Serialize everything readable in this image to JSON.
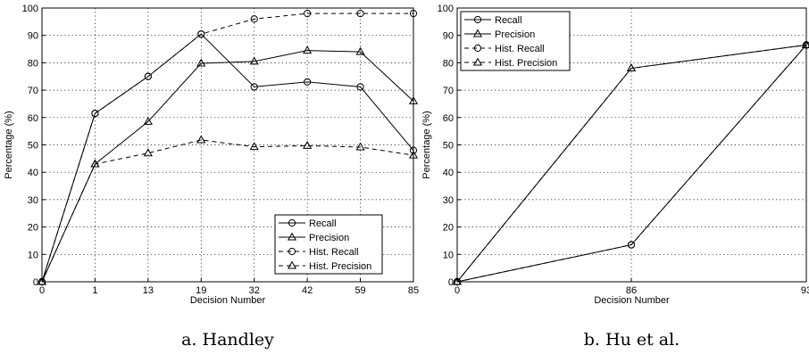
{
  "chart_data": [
    {
      "type": "line",
      "xlabel": "Decision Number",
      "ylabel": "Percentage (%)",
      "caption": "a. Handley",
      "x": [
        "0",
        "1",
        "13",
        "19",
        "32",
        "42",
        "59",
        "85"
      ],
      "ylim": [
        0,
        100
      ],
      "yticks": [
        "0",
        "10",
        "20",
        "30",
        "40",
        "50",
        "60",
        "70",
        "80",
        "90",
        "100"
      ],
      "grid": true,
      "legend_position": "bottom-right",
      "series": [
        {
          "name": "Recall",
          "marker": "circle",
          "dash": "solid",
          "values": [
            0,
            61.5,
            75,
            90.5,
            71.2,
            73,
            71.2,
            48
          ]
        },
        {
          "name": "Precision",
          "marker": "triangle",
          "dash": "solid",
          "values": [
            0,
            43,
            58.5,
            79.8,
            80.5,
            84.5,
            84,
            66
          ]
        },
        {
          "name": "Hist. Recall",
          "marker": "circle",
          "dash": "dashed",
          "values": [
            0,
            61.5,
            75,
            90.5,
            96,
            98,
            98,
            98
          ]
        },
        {
          "name": "Hist. Precision",
          "marker": "triangle",
          "dash": "dashed",
          "values": [
            0,
            43,
            47,
            51.8,
            49.3,
            49.7,
            49.2,
            46.2
          ]
        }
      ]
    },
    {
      "type": "line",
      "xlabel": "Decision Number",
      "ylabel": "Percentage (%)",
      "caption": "b. Hu et al.",
      "x": [
        "0",
        "86",
        "93"
      ],
      "ylim": [
        0,
        100
      ],
      "yticks": [
        "0",
        "10",
        "20",
        "30",
        "40",
        "50",
        "60",
        "70",
        "80",
        "90",
        "100"
      ],
      "grid": true,
      "legend_position": "top-left",
      "series": [
        {
          "name": "Recall",
          "marker": "circle",
          "dash": "solid",
          "values": [
            0,
            13.5,
            86.5
          ]
        },
        {
          "name": "Precision",
          "marker": "triangle",
          "dash": "solid",
          "values": [
            0,
            78,
            86.5
          ]
        },
        {
          "name": "Hist. Recall",
          "marker": "circle",
          "dash": "dashed",
          "values": [
            0,
            13.5,
            86.5
          ]
        },
        {
          "name": "Hist. Precision",
          "marker": "triangle",
          "dash": "dashed",
          "values": [
            0,
            78,
            86.5
          ]
        }
      ]
    }
  ]
}
